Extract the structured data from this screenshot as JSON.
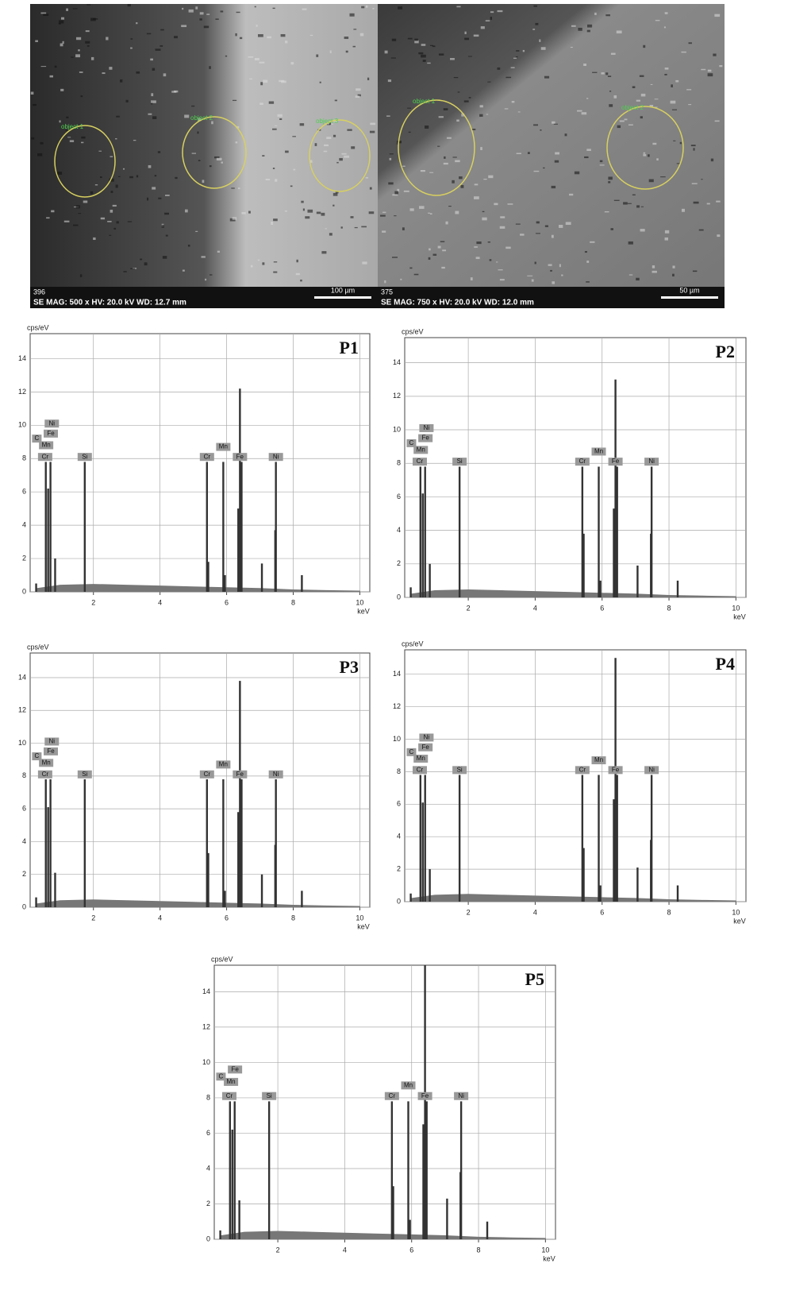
{
  "images": [
    {
      "code": "396",
      "caption": "SE  MAG: 500 x  HV: 20.0 kV  WD: 12.7 mm",
      "scale": "100 µm",
      "objects": [
        "object 1",
        "object 2",
        "object 3"
      ]
    },
    {
      "code": "375",
      "caption": "SE  MAG: 750 x  HV: 20.0 kV  WD: 12.0 mm",
      "scale": "50 µm",
      "objects": [
        "object 1",
        "object 2"
      ]
    }
  ],
  "chart_data": [
    {
      "type": "spectrum",
      "title": "P1",
      "ylabel": "cps/eV",
      "xlabel": "keV",
      "xlim": [
        0.1,
        10.3
      ],
      "ylim": [
        0,
        15.5
      ],
      "xticks": [
        2,
        4,
        6,
        8,
        10
      ],
      "yticks": [
        0,
        2,
        4,
        6,
        8,
        10,
        12,
        14
      ],
      "grid": true,
      "color": "#333333",
      "background_color": "#777777",
      "x": [
        0.28,
        0.57,
        0.64,
        0.71,
        0.85,
        1.74,
        5.41,
        5.45,
        5.9,
        5.95,
        6.35,
        6.4,
        6.45,
        7.06,
        7.46,
        7.48,
        8.26
      ],
      "values": [
        0.5,
        7.8,
        6.2,
        7.8,
        2.0,
        7.8,
        7.8,
        1.8,
        7.8,
        1.0,
        5.0,
        12.2,
        7.8,
        1.7,
        3.7,
        7.8,
        1.0
      ],
      "continuum": {
        "x": [
          0.3,
          1,
          2,
          3,
          4,
          5,
          6,
          7,
          8,
          9,
          10
        ],
        "values": [
          0.2,
          0.4,
          0.45,
          0.4,
          0.35,
          0.3,
          0.25,
          0.2,
          0.12,
          0.08,
          0.05
        ]
      },
      "peak_labels": [
        {
          "text": "C",
          "x": 0.3,
          "y": 9.2
        },
        {
          "text": "Ni",
          "x": 0.75,
          "y": 10.1
        },
        {
          "text": "Fe",
          "x": 0.72,
          "y": 9.5
        },
        {
          "text": "Mn",
          "x": 0.58,
          "y": 8.8
        },
        {
          "text": "Cr",
          "x": 0.55,
          "y": 8.1
        },
        {
          "text": "Si",
          "x": 1.74,
          "y": 8.1
        },
        {
          "text": "Cr",
          "x": 5.41,
          "y": 8.1
        },
        {
          "text": "Mn",
          "x": 5.9,
          "y": 8.7
        },
        {
          "text": "Fe",
          "x": 6.4,
          "y": 8.1
        },
        {
          "text": "Ni",
          "x": 7.48,
          "y": 8.1
        }
      ]
    },
    {
      "type": "spectrum",
      "title": "P2",
      "ylabel": "cps/eV",
      "xlabel": "keV",
      "xlim": [
        0.1,
        10.3
      ],
      "ylim": [
        0,
        15.5
      ],
      "xticks": [
        2,
        4,
        6,
        8,
        10
      ],
      "yticks": [
        0,
        2,
        4,
        6,
        8,
        10,
        12,
        14
      ],
      "grid": true,
      "color": "#333333",
      "background_color": "#777777",
      "x": [
        0.28,
        0.57,
        0.64,
        0.71,
        0.85,
        1.74,
        5.41,
        5.45,
        5.9,
        5.95,
        6.35,
        6.4,
        6.45,
        7.06,
        7.46,
        7.48,
        8.26
      ],
      "values": [
        0.6,
        7.8,
        6.2,
        7.8,
        2.0,
        7.8,
        7.8,
        3.8,
        7.8,
        1.0,
        5.3,
        13.0,
        7.8,
        1.9,
        3.8,
        7.8,
        1.0
      ],
      "continuum": {
        "x": [
          0.3,
          1,
          2,
          3,
          4,
          5,
          6,
          7,
          8,
          9,
          10
        ],
        "values": [
          0.2,
          0.4,
          0.45,
          0.4,
          0.35,
          0.3,
          0.25,
          0.2,
          0.12,
          0.08,
          0.05
        ]
      },
      "peak_labels": [
        {
          "text": "C",
          "x": 0.3,
          "y": 9.2
        },
        {
          "text": "Ni",
          "x": 0.75,
          "y": 10.1
        },
        {
          "text": "Fe",
          "x": 0.72,
          "y": 9.5
        },
        {
          "text": "Mn",
          "x": 0.58,
          "y": 8.8
        },
        {
          "text": "Cr",
          "x": 0.55,
          "y": 8.1
        },
        {
          "text": "Si",
          "x": 1.74,
          "y": 8.1
        },
        {
          "text": "Cr",
          "x": 5.41,
          "y": 8.1
        },
        {
          "text": "Mn",
          "x": 5.9,
          "y": 8.7
        },
        {
          "text": "Fe",
          "x": 6.4,
          "y": 8.1
        },
        {
          "text": "Ni",
          "x": 7.48,
          "y": 8.1
        }
      ]
    },
    {
      "type": "spectrum",
      "title": "P3",
      "ylabel": "cps/eV",
      "xlabel": "keV",
      "xlim": [
        0.1,
        10.3
      ],
      "ylim": [
        0,
        15.5
      ],
      "xticks": [
        2,
        4,
        6,
        8,
        10
      ],
      "yticks": [
        0,
        2,
        4,
        6,
        8,
        10,
        12,
        14
      ],
      "grid": true,
      "color": "#333333",
      "background_color": "#777777",
      "x": [
        0.28,
        0.57,
        0.64,
        0.71,
        0.85,
        1.74,
        5.41,
        5.45,
        5.9,
        5.95,
        6.35,
        6.4,
        6.45,
        7.06,
        7.46,
        7.48,
        8.26
      ],
      "values": [
        0.6,
        7.8,
        6.1,
        7.8,
        2.1,
        7.8,
        7.8,
        3.3,
        7.8,
        1.0,
        5.8,
        13.8,
        7.8,
        2.0,
        3.8,
        7.8,
        1.0
      ],
      "continuum": {
        "x": [
          0.3,
          1,
          2,
          3,
          4,
          5,
          6,
          7,
          8,
          9,
          10
        ],
        "values": [
          0.2,
          0.4,
          0.45,
          0.4,
          0.35,
          0.3,
          0.25,
          0.2,
          0.12,
          0.08,
          0.05
        ]
      },
      "peak_labels": [
        {
          "text": "C",
          "x": 0.3,
          "y": 9.2
        },
        {
          "text": "Ni",
          "x": 0.75,
          "y": 10.1
        },
        {
          "text": "Fe",
          "x": 0.72,
          "y": 9.5
        },
        {
          "text": "Mn",
          "x": 0.58,
          "y": 8.8
        },
        {
          "text": "Cr",
          "x": 0.55,
          "y": 8.1
        },
        {
          "text": "Si",
          "x": 1.74,
          "y": 8.1
        },
        {
          "text": "Cr",
          "x": 5.41,
          "y": 8.1
        },
        {
          "text": "Mn",
          "x": 5.9,
          "y": 8.7
        },
        {
          "text": "Fe",
          "x": 6.4,
          "y": 8.1
        },
        {
          "text": "Ni",
          "x": 7.48,
          "y": 8.1
        }
      ]
    },
    {
      "type": "spectrum",
      "title": "P4",
      "ylabel": "cps/eV",
      "xlabel": "keV",
      "xlim": [
        0.1,
        10.3
      ],
      "ylim": [
        0,
        15.5
      ],
      "xticks": [
        2,
        4,
        6,
        8,
        10
      ],
      "yticks": [
        0,
        2,
        4,
        6,
        8,
        10,
        12,
        14
      ],
      "grid": true,
      "color": "#333333",
      "background_color": "#777777",
      "x": [
        0.28,
        0.57,
        0.64,
        0.71,
        0.85,
        1.74,
        5.41,
        5.45,
        5.9,
        5.95,
        6.35,
        6.4,
        6.45,
        7.06,
        7.46,
        7.48,
        8.26
      ],
      "values": [
        0.5,
        7.8,
        6.1,
        7.8,
        2.0,
        7.8,
        7.8,
        3.3,
        7.8,
        1.0,
        6.3,
        15.0,
        7.8,
        2.1,
        3.8,
        7.8,
        1.0
      ],
      "continuum": {
        "x": [
          0.3,
          1,
          2,
          3,
          4,
          5,
          6,
          7,
          8,
          9,
          10
        ],
        "values": [
          0.2,
          0.4,
          0.45,
          0.4,
          0.35,
          0.3,
          0.25,
          0.2,
          0.12,
          0.08,
          0.05
        ]
      },
      "peak_labels": [
        {
          "text": "C",
          "x": 0.3,
          "y": 9.2
        },
        {
          "text": "Ni",
          "x": 0.75,
          "y": 10.1
        },
        {
          "text": "Fe",
          "x": 0.72,
          "y": 9.5
        },
        {
          "text": "Mn",
          "x": 0.58,
          "y": 8.8
        },
        {
          "text": "Cr",
          "x": 0.55,
          "y": 8.1
        },
        {
          "text": "Si",
          "x": 1.74,
          "y": 8.1
        },
        {
          "text": "Cr",
          "x": 5.41,
          "y": 8.1
        },
        {
          "text": "Mn",
          "x": 5.9,
          "y": 8.7
        },
        {
          "text": "Fe",
          "x": 6.4,
          "y": 8.1
        },
        {
          "text": "Ni",
          "x": 7.48,
          "y": 8.1
        }
      ]
    },
    {
      "type": "spectrum",
      "title": "P5",
      "ylabel": "cps/eV",
      "xlabel": "keV",
      "xlim": [
        0.1,
        10.3
      ],
      "ylim": [
        0,
        15.5
      ],
      "xticks": [
        2,
        4,
        6,
        8,
        10
      ],
      "yticks": [
        0,
        2,
        4,
        6,
        8,
        10,
        12,
        14
      ],
      "grid": true,
      "color": "#333333",
      "background_color": "#777777",
      "x": [
        0.28,
        0.57,
        0.64,
        0.71,
        0.85,
        1.74,
        5.41,
        5.45,
        5.9,
        5.95,
        6.35,
        6.4,
        6.45,
        7.06,
        7.46,
        7.48,
        8.26
      ],
      "values": [
        0.5,
        7.8,
        6.2,
        7.8,
        2.2,
        7.8,
        7.8,
        3.0,
        7.8,
        1.1,
        6.5,
        15.5,
        7.8,
        2.3,
        3.8,
        7.8,
        1.0
      ],
      "continuum": {
        "x": [
          0.3,
          1,
          2,
          3,
          4,
          5,
          6,
          7,
          8,
          9,
          10
        ],
        "values": [
          0.2,
          0.4,
          0.45,
          0.4,
          0.35,
          0.3,
          0.25,
          0.2,
          0.12,
          0.08,
          0.05
        ]
      },
      "peak_labels": [
        {
          "text": "C",
          "x": 0.3,
          "y": 9.2
        },
        {
          "text": "Fe",
          "x": 0.72,
          "y": 9.6
        },
        {
          "text": "Mn",
          "x": 0.6,
          "y": 8.9
        },
        {
          "text": "Cr",
          "x": 0.55,
          "y": 8.1
        },
        {
          "text": "Si",
          "x": 1.74,
          "y": 8.1
        },
        {
          "text": "Cr",
          "x": 5.41,
          "y": 8.1
        },
        {
          "text": "Mn",
          "x": 5.9,
          "y": 8.7
        },
        {
          "text": "Fe",
          "x": 6.4,
          "y": 8.1
        },
        {
          "text": "Ni",
          "x": 7.48,
          "y": 8.1
        }
      ]
    }
  ]
}
